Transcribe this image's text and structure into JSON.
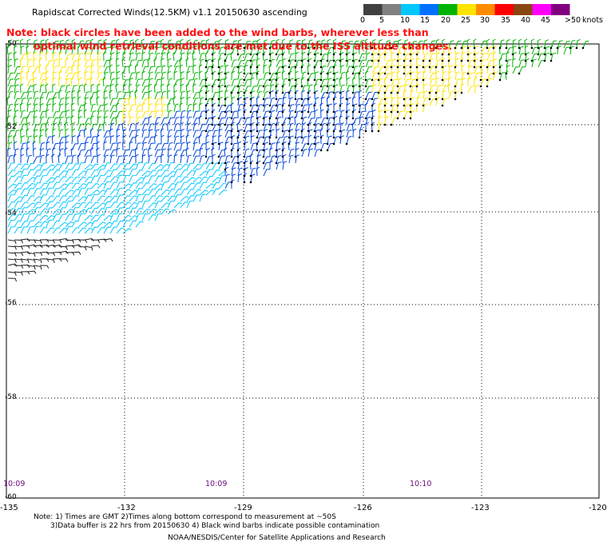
{
  "title": "Rapidscat Corrected Winds(12.5KM) v1.1 20150630 ascending",
  "note_line1": "Note: black circles have been added to the wind barbs, wherever less than",
  "note_line2": "optimal wind retrieval conditions are met due to the ISS altitude changes.",
  "legend": {
    "labels": [
      "0",
      "5",
      "10",
      "15",
      "20",
      "25",
      "30",
      "35",
      "40",
      "45",
      ">50",
      "knots"
    ],
    "colors": [
      "#404040",
      "#808080",
      "#00c8ff",
      "#0070ff",
      "#00b400",
      "#ffe400",
      "#ff8c00",
      "#ff0000",
      "#8b4513",
      "#ff00ff",
      "#800080"
    ]
  },
  "lat_labels": [
    "-50",
    "-52",
    "-54",
    "-56",
    "-58",
    "-60"
  ],
  "lon_labels": [
    "-135",
    "-132",
    "-129",
    "-126",
    "-123",
    "-120"
  ],
  "times": [
    "10:09",
    "10:09",
    "10:10"
  ],
  "footer": {
    "line1": "Note: 1) Times are GMT 2)Times along bottom correspond to measurement at ~50S",
    "line2": "3)Data buffer is 22 hrs from 20150630 4) Black wind barbs indicate possible contamination",
    "line3": "NOAA/NESDIS/Center for Satellite Applications and Research"
  },
  "colors": {
    "black_barb": "#202020",
    "cyan": "#00c8ff",
    "blue": "#0044dd",
    "green": "#00b400",
    "yellow": "#ffe400",
    "orange": "#ff8c00",
    "red": "#ff2020"
  }
}
